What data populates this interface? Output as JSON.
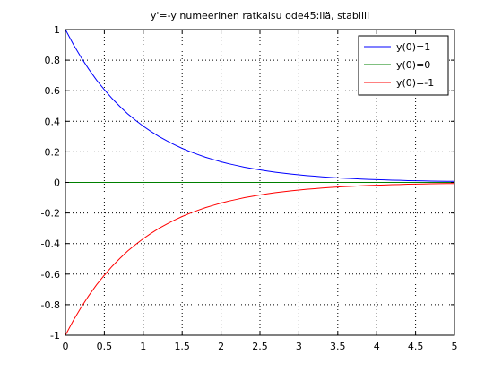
{
  "chart_data": {
    "type": "line",
    "title": "y'=-y numeerinen ratkaisu ode45:llä, stabiili",
    "xlabel": "",
    "ylabel": "",
    "xlim": [
      0,
      5
    ],
    "ylim": [
      -1,
      1
    ],
    "grid": true,
    "legend_position": "top-right",
    "x_ticks": [
      "0",
      "0.5",
      "1",
      "1.5",
      "2",
      "2.5",
      "3",
      "3.5",
      "4",
      "4.5",
      "5"
    ],
    "y_ticks": [
      "-1",
      "-0.8",
      "-0.6",
      "-0.4",
      "-0.2",
      "0",
      "0.2",
      "0.4",
      "0.6",
      "0.8",
      "1"
    ],
    "x": [
      0,
      0.1,
      0.2,
      0.3,
      0.4,
      0.5,
      0.6,
      0.7,
      0.8,
      0.9,
      1.0,
      1.1,
      1.2,
      1.3,
      1.4,
      1.5,
      1.6,
      1.7,
      1.8,
      1.9,
      2.0,
      2.1,
      2.2,
      2.3,
      2.4,
      2.5,
      2.6,
      2.7,
      2.8,
      2.9,
      3.0,
      3.1,
      3.2,
      3.3,
      3.4,
      3.5,
      3.6,
      3.7,
      3.8,
      3.9,
      4.0,
      4.1,
      4.2,
      4.3,
      4.4,
      4.5,
      4.6,
      4.7,
      4.8,
      4.9,
      5.0
    ],
    "series": [
      {
        "name": "y(0)=1",
        "color": "#0000ff",
        "values": [
          1.0,
          0.905,
          0.819,
          0.741,
          0.67,
          0.607,
          0.549,
          0.497,
          0.449,
          0.407,
          0.368,
          0.333,
          0.301,
          0.273,
          0.247,
          0.223,
          0.202,
          0.183,
          0.165,
          0.15,
          0.135,
          0.122,
          0.111,
          0.1,
          0.091,
          0.082,
          0.074,
          0.067,
          0.061,
          0.055,
          0.05,
          0.045,
          0.041,
          0.037,
          0.033,
          0.03,
          0.027,
          0.025,
          0.022,
          0.02,
          0.018,
          0.017,
          0.015,
          0.014,
          0.012,
          0.011,
          0.01,
          0.009,
          0.008,
          0.007,
          0.007
        ]
      },
      {
        "name": "y(0)=0",
        "color": "#008000",
        "values": [
          0,
          0,
          0,
          0,
          0,
          0,
          0,
          0,
          0,
          0,
          0,
          0,
          0,
          0,
          0,
          0,
          0,
          0,
          0,
          0,
          0,
          0,
          0,
          0,
          0,
          0,
          0,
          0,
          0,
          0,
          0,
          0,
          0,
          0,
          0,
          0,
          0,
          0,
          0,
          0,
          0,
          0,
          0,
          0,
          0,
          0,
          0,
          0,
          0,
          0,
          0
        ]
      },
      {
        "name": "y(0)=-1",
        "color": "#ff0000",
        "values": [
          -1.0,
          -0.905,
          -0.819,
          -0.741,
          -0.67,
          -0.607,
          -0.549,
          -0.497,
          -0.449,
          -0.407,
          -0.368,
          -0.333,
          -0.301,
          -0.273,
          -0.247,
          -0.223,
          -0.202,
          -0.183,
          -0.165,
          -0.15,
          -0.135,
          -0.122,
          -0.111,
          -0.1,
          -0.091,
          -0.082,
          -0.074,
          -0.067,
          -0.061,
          -0.055,
          -0.05,
          -0.045,
          -0.041,
          -0.037,
          -0.033,
          -0.03,
          -0.027,
          -0.025,
          -0.022,
          -0.02,
          -0.018,
          -0.017,
          -0.015,
          -0.014,
          -0.012,
          -0.011,
          -0.01,
          -0.009,
          -0.008,
          -0.007,
          -0.007
        ]
      }
    ]
  }
}
